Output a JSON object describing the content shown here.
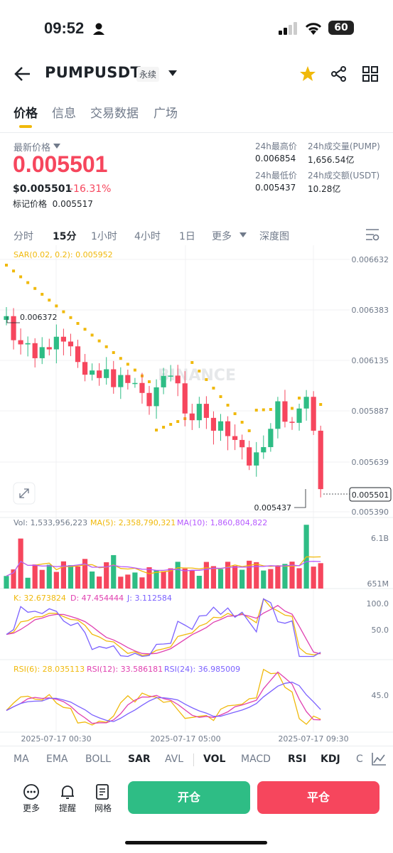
{
  "status_bar": {
    "time": "09:52",
    "battery": "60"
  },
  "header": {
    "symbol": "PUMPUSDT",
    "contract_type": "永续"
  },
  "tabs": [
    {
      "label": "价格",
      "active": true
    },
    {
      "label": "信息",
      "active": false
    },
    {
      "label": "交易数据",
      "active": false
    },
    {
      "label": "广场",
      "active": false
    }
  ],
  "price": {
    "latest_label": "最新价格",
    "last": "0.005501",
    "usd": "$0.005501",
    "change": "-16.31%",
    "mark_label": "标记价格",
    "mark_value": "0.005517"
  },
  "stats": {
    "high_label": "24h最高价",
    "high": "0.006854",
    "low_label": "24h最低价",
    "low": "0.005437",
    "vol_label": "24h成交量(PUMP)",
    "vol": "1,656.54亿",
    "amt_label": "24h成交额(USDT)",
    "amt": "10.28亿"
  },
  "intervals": [
    "分时",
    "15分",
    "1小时",
    "4小时",
    "1日",
    "更多",
    "深度图"
  ],
  "active_interval": "15分",
  "chart": {
    "sar_label": "SAR(0.02, 0.2): 0.005952",
    "watermark": "BINANCE",
    "axis_ticks": [
      "0.006632",
      "0.006383",
      "0.006135",
      "0.005887",
      "0.005639",
      "0.005390"
    ],
    "high_marker": "0.006372",
    "low_marker": "0.005437",
    "current_price_tag": "0.005501",
    "vol_label": "Vol: 1,533,956,223",
    "ma5_label": "MA(5): 2,358,790,321",
    "ma10_label": "MA(10): 1,860,804,822",
    "vol_axis": [
      "6.1B",
      "651M"
    ],
    "k_label": "K: 32.673824",
    "d_label": "D: 47.454444",
    "j_label": "J: 3.112584",
    "kdj_axis": [
      "100.0",
      "50.0"
    ],
    "rsi6_label": "RSI(6): 28.035113",
    "rsi12_label": "RSI(12): 33.586181",
    "rsi24_label": "RSI(24): 36.985009",
    "rsi_axis": [
      "45.0"
    ],
    "time_labels": [
      "2025-07-17 00:30",
      "2025-07-17 05:00",
      "2025-07-17 09:30"
    ]
  },
  "indicators": [
    "MA",
    "EMA",
    "BOLL",
    "SAR",
    "AVL",
    "VOL",
    "MACD",
    "RSI",
    "KDJ",
    "C"
  ],
  "bottom": {
    "more": "更多",
    "alert": "提醒",
    "grid": "网格",
    "open": "开仓",
    "close": "平仓"
  },
  "colors": {
    "up": "#2ebd85",
    "down": "#f6465d",
    "accent": "#f0b90b",
    "sar": "#f0b90b",
    "ma5": "#f0b90b",
    "ma10": "#b659ff"
  }
}
